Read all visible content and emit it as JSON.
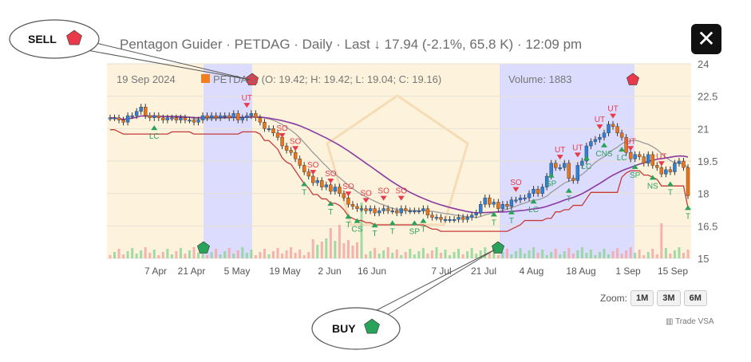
{
  "header": {
    "title": "Pentagon Guider · PETDAG · Daily · Last ↓ 17.94 (-2.1%, 65.8 K) · 12:09 pm",
    "close_icon": "close-icon"
  },
  "legend": {
    "date": "19 Sep 2024",
    "symbol": "PETDAG",
    "ohlc": ": (O: 19.42; H: 19.42; L: 19.04; C: 19.16)",
    "volume": "Volume: 1883",
    "swatch_color": "#f07f1f"
  },
  "zoom": {
    "label": "Zoom:",
    "options": [
      "1M",
      "3M",
      "6M"
    ]
  },
  "credit": "Trade VSA",
  "callouts": {
    "sell": "SELL",
    "buy": "BUY"
  },
  "colors": {
    "up": "#2f7fd6",
    "down": "#e8751a",
    "sell": "#e83a4a",
    "buy": "#2aa35a",
    "band_blue": "#dcdcff",
    "band_yellow": "#fdf3dd",
    "red_line": "#c63a3a",
    "purple_line": "#8a3aa0",
    "gray_line": "#9a9a9a"
  },
  "chart_data": {
    "type": "candlestick",
    "y_ticks": [
      "24",
      "22.5",
      "21",
      "19.5",
      "18",
      "16.5",
      "15"
    ],
    "ylim": [
      15,
      24
    ],
    "x_ticks": [
      "7 Apr",
      "21 Apr",
      "5 May",
      "19 May",
      "2 Jun",
      "16 Jun",
      "7 Jul",
      "21 Jul",
      "4 Aug",
      "18 Aug",
      "1 Sep",
      "15 Sep"
    ],
    "x": [
      0,
      1,
      2,
      3,
      4,
      5,
      6,
      7,
      8,
      9,
      10,
      11,
      12,
      13,
      14,
      15,
      16,
      17,
      18,
      19,
      20,
      21,
      22,
      23,
      24,
      25,
      26,
      27,
      28,
      29,
      30,
      31,
      32,
      33,
      34,
      35,
      36,
      37,
      38,
      39,
      40,
      41,
      42,
      43,
      44,
      45,
      46,
      47,
      48,
      49,
      50,
      51,
      52,
      53,
      54,
      55,
      56,
      57,
      58,
      59,
      60,
      61,
      62,
      63,
      64,
      65,
      66,
      67,
      68,
      69,
      70,
      71,
      72,
      73,
      74,
      75,
      76,
      77,
      78,
      79,
      80,
      81,
      82,
      83,
      84,
      85,
      86,
      87,
      88,
      89,
      90,
      91,
      92,
      93,
      94,
      95,
      96,
      97,
      98,
      99,
      100,
      101,
      102,
      103,
      104,
      105,
      106,
      107,
      108,
      109,
      110,
      111,
      112,
      113,
      114,
      115,
      116,
      117,
      118,
      119,
      120,
      121,
      122,
      123,
      124,
      125,
      126,
      127,
      128,
      129,
      130,
      131
    ],
    "close": [
      21.5,
      21.5,
      21.4,
      21.3,
      21.6,
      21.6,
      21.8,
      22.0,
      21.6,
      21.5,
      21.6,
      21.5,
      21.4,
      21.5,
      21.5,
      21.4,
      21.5,
      21.4,
      21.4,
      21.3,
      21.4,
      21.6,
      21.5,
      21.6,
      21.5,
      21.6,
      21.6,
      21.5,
      21.7,
      21.4,
      21.5,
      21.6,
      21.7,
      21.5,
      21.3,
      21.0,
      21.0,
      20.8,
      20.6,
      20.2,
      20.0,
      19.9,
      19.6,
      19.3,
      19.0,
      18.8,
      18.5,
      18.6,
      18.3,
      18.4,
      18.1,
      18.3,
      18.0,
      17.8,
      17.5,
      17.4,
      17.3,
      17.3,
      17.2,
      17.3,
      17.1,
      17.2,
      17.3,
      17.2,
      17.2,
      17.1,
      17.3,
      17.2,
      17.2,
      17.2,
      17.2,
      17.3,
      17.0,
      16.9,
      16.9,
      16.8,
      16.8,
      16.8,
      16.8,
      16.9,
      16.8,
      16.9,
      17.0,
      17.1,
      17.5,
      17.8,
      17.5,
      17.6,
      17.3,
      17.5,
      17.4,
      17.7,
      17.7,
      17.8,
      17.8,
      18.0,
      18.2,
      18.0,
      18.3,
      18.8,
      19.4,
      19.2,
      19.2,
      19.4,
      18.7,
      18.6,
      19.3,
      19.5,
      20.2,
      20.4,
      20.5,
      20.6,
      20.8,
      21.2,
      21.1,
      20.8,
      20.6,
      19.9,
      19.6,
      19.8,
      19.7,
      19.4,
      19.8,
      19.3,
      19.2,
      18.9,
      19.1,
      19.0,
      19.4,
      19.5,
      19.2,
      17.9
    ],
    "band_shading": [
      {
        "from": 26,
        "to": 41,
        "color": "blue"
      },
      {
        "from": 113,
        "to": 153,
        "color": "blue"
      },
      {
        "from": 224,
        "to": 247,
        "color": "blue"
      }
    ],
    "signals": [
      {
        "i": 32,
        "label": "UT",
        "type": "sell"
      },
      {
        "i": 40,
        "label": "SO",
        "type": "sell"
      },
      {
        "i": 44,
        "label": "SO",
        "type": "sell"
      },
      {
        "i": 48,
        "label": "SO",
        "type": "sell"
      },
      {
        "i": 52,
        "label": "SO",
        "type": "sell"
      },
      {
        "i": 56,
        "label": "SO",
        "type": "sell"
      },
      {
        "i": 60,
        "label": "SO",
        "type": "sell"
      },
      {
        "i": 64,
        "label": "SO",
        "type": "sell"
      },
      {
        "i": 68,
        "label": "SO",
        "type": "sell"
      },
      {
        "i": 96,
        "label": "SO",
        "type": "sell"
      },
      {
        "i": 106,
        "label": "UT",
        "type": "sell"
      },
      {
        "i": 110,
        "label": "UT",
        "type": "sell"
      },
      {
        "i": 115,
        "label": "UT",
        "type": "sell"
      },
      {
        "i": 118,
        "label": "UT",
        "type": "sell"
      },
      {
        "i": 122,
        "label": "UT",
        "type": "sell"
      },
      {
        "i": 130,
        "label": "UT",
        "type": "sell"
      },
      {
        "i": 10,
        "label": "LC",
        "type": "buy"
      },
      {
        "i": 46,
        "label": "T",
        "type": "buy"
      },
      {
        "i": 52,
        "label": "T",
        "type": "buy"
      },
      {
        "i": 56,
        "label": "T",
        "type": "buy"
      },
      {
        "i": 58,
        "label": "CS",
        "type": "buy"
      },
      {
        "i": 62,
        "label": "T",
        "type": "buy"
      },
      {
        "i": 66,
        "label": "T",
        "type": "buy"
      },
      {
        "i": 72,
        "label": "SP",
        "type": "buy"
      },
      {
        "i": 74,
        "label": "T",
        "type": "buy"
      },
      {
        "i": 90,
        "label": "T",
        "type": "buy"
      },
      {
        "i": 94,
        "label": "T",
        "type": "buy"
      },
      {
        "i": 100,
        "label": "LC",
        "type": "buy"
      },
      {
        "i": 104,
        "label": "SP",
        "type": "buy"
      },
      {
        "i": 108,
        "label": "T",
        "type": "buy"
      },
      {
        "i": 112,
        "label": "LC",
        "type": "buy"
      },
      {
        "i": 116,
        "label": "CNS",
        "type": "buy"
      },
      {
        "i": 120,
        "label": "LC",
        "type": "buy"
      },
      {
        "i": 124,
        "label": "SP",
        "type": "buy"
      },
      {
        "i": 128,
        "label": "NS",
        "type": "buy"
      },
      {
        "i": 132,
        "label": "T",
        "type": "buy"
      },
      {
        "i": 136,
        "label": "T",
        "type": "buy"
      }
    ]
  }
}
